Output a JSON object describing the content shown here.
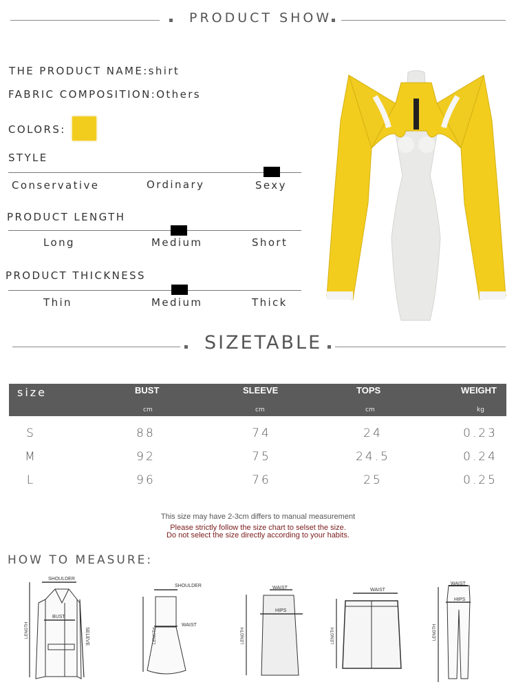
{
  "product_show": {
    "title": "PRODUCT SHOW"
  },
  "info": {
    "name": "THE PRODUCT NAME:shirt",
    "fabric_label": "FABRIC COMPOSITION:",
    "fabric_value": "Others",
    "colors_label": "COLORS:",
    "color_swatch": "#f2cd1e"
  },
  "scales": [
    {
      "title": "STYLE",
      "options": [
        "Conservative",
        "Ordinary",
        "Sexy"
      ],
      "selected": "Sexy"
    },
    {
      "title": "PRODUCT LENGTH",
      "options": [
        "Long",
        "Medium",
        "Short"
      ],
      "selected": "Medium"
    },
    {
      "title": "PRODUCT THICKNESS",
      "options": [
        "Thin",
        "Medium",
        "Thick"
      ],
      "selected": "Medium"
    }
  ],
  "sizetable": {
    "title": "SIZETABLE",
    "headers": [
      "size",
      "BUST",
      "SLEEVE",
      "TOPS",
      "WEIGHT"
    ],
    "units": [
      "",
      "cm",
      "cm",
      "cm",
      "kg"
    ],
    "rows": [
      [
        "S",
        "88",
        "74",
        "24",
        "0.23"
      ],
      [
        "M",
        "92",
        "75",
        "24.5",
        "0.24"
      ],
      [
        "L",
        "96",
        "76",
        "25",
        "0.25"
      ]
    ],
    "header_color": "#5b5b5b"
  },
  "notes": {
    "line1": "This size may have 2-3cm differs to manual measurement",
    "line2": "Please strictly follow the size chart to selset the size.",
    "line3": "Do not select the size directly according to your habits.",
    "warning_color": "#7a1a1a"
  },
  "measure": {
    "title": "HOW TO MEASURE:",
    "shoulder": "SHOULDER",
    "bust": "BUST",
    "length": "LENGTH",
    "seleve": "SELEVE",
    "waist": "WAIST",
    "hips": "HIPS"
  }
}
